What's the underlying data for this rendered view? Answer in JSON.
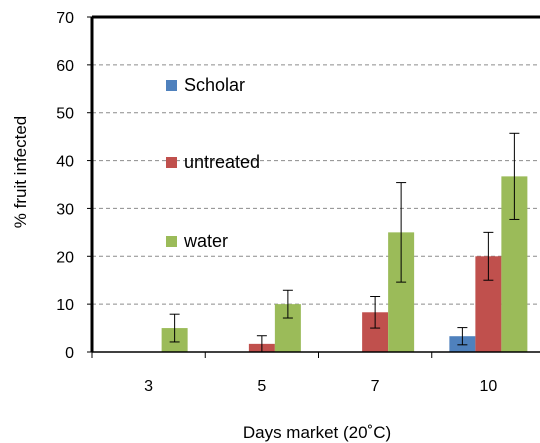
{
  "chart_data": {
    "type": "bar",
    "title": "",
    "xlabel": "Days market (20˚C)",
    "ylabel": "% fruit infected",
    "categories": [
      "3",
      "5",
      "7",
      "10"
    ],
    "ylim": [
      0,
      70
    ],
    "ytick_step": 10,
    "grid": true,
    "legend": "inside-left",
    "series": [
      {
        "name": "Scholar",
        "color": "#4f81bd",
        "values": [
          0,
          0,
          0,
          3.3
        ],
        "errors": [
          0,
          0,
          0,
          1.8
        ]
      },
      {
        "name": "untreated",
        "color": "#c0504d",
        "values": [
          0,
          1.7,
          8.3,
          20.0
        ],
        "errors": [
          0,
          1.7,
          3.3,
          5.0
        ]
      },
      {
        "name": "water",
        "color": "#9bbb59",
        "values": [
          5.0,
          10.0,
          25.0,
          36.7
        ],
        "errors": [
          2.9,
          2.9,
          10.4,
          9.0
        ]
      }
    ]
  }
}
